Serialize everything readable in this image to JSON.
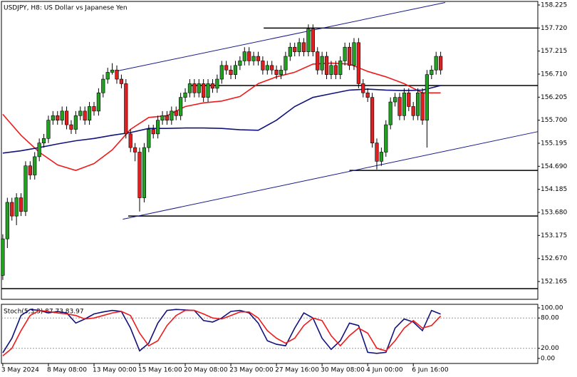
{
  "chart_data": [
    {
      "type": "candlestick",
      "title": "USDJPY, H8: US Dollar vs Japanese Yen",
      "bull_color": "#22a022",
      "bear_color": "#e02020",
      "xlim": [
        -0.3,
        117.3
      ],
      "xticks": [
        {
          "value": 0,
          "label": "3 May 2024"
        },
        {
          "value": 10,
          "label": "8 May 08:00"
        },
        {
          "value": 20,
          "label": "13 May 00:00"
        },
        {
          "value": 30,
          "label": "15 May 16:00"
        },
        {
          "value": 40,
          "label": "20 May 08:00"
        },
        {
          "value": 50,
          "label": "23 May 00:00"
        },
        {
          "value": 60,
          "label": "27 May 16:00"
        },
        {
          "value": 70,
          "label": "30 May 08:00"
        },
        {
          "value": 80,
          "label": "4 Jun 00:00"
        },
        {
          "value": 90,
          "label": "6 Jun 16:00"
        }
      ],
      "ylim": [
        151.775,
        158.303
      ],
      "yticks": [
        158.225,
        {
          "value": 157.72,
          "label": "157.720"
        },
        157.215,
        {
          "value": 156.71,
          "label": "156.710"
        },
        156.205,
        {
          "value": 155.7,
          "label": "155.700"
        },
        155.195,
        {
          "value": 154.69,
          "label": "154.690"
        },
        154.185,
        {
          "value": 153.68,
          "label": "153.680"
        },
        153.175,
        {
          "value": 152.67,
          "label": "152.670"
        },
        152.165
      ],
      "open": [
        152.3,
        153.1,
        153.9,
        153.6,
        154.0,
        153.7,
        154.7,
        154.5,
        154.9,
        155.2,
        155.3,
        155.7,
        155.8,
        155.7,
        155.9,
        155.6,
        155.5,
        155.8,
        155.9,
        155.7,
        156.0,
        155.9,
        156.3,
        156.6,
        156.75,
        156.8,
        156.6,
        156.5,
        155.4,
        155.1,
        155.0,
        154.0,
        155.1,
        155.5,
        155.4,
        155.7,
        155.8,
        155.7,
        155.9,
        155.8,
        156.2,
        156.3,
        156.5,
        156.3,
        156.5,
        156.2,
        156.5,
        156.4,
        156.6,
        156.9,
        156.8,
        156.7,
        156.9,
        157.0,
        157.2,
        157.0,
        157.1,
        157.0,
        156.8,
        156.9,
        156.8,
        156.7,
        156.8,
        157.1,
        157.3,
        157.2,
        157.4,
        157.2,
        157.7,
        157.2,
        156.8,
        157.1,
        156.7,
        156.9,
        156.7,
        157.0,
        157.3,
        156.9,
        157.4,
        156.5,
        156.3,
        156.2,
        155.2,
        154.8,
        155.0,
        155.6,
        156.1,
        156.2,
        155.8,
        156.3,
        156.0,
        155.8,
        156.3,
        155.7,
        156.7,
        156.8,
        157.1
      ],
      "high": [
        153.2,
        154.0,
        154.0,
        154.1,
        154.1,
        154.8,
        154.8,
        155.0,
        155.3,
        155.4,
        155.8,
        155.9,
        155.9,
        156.0,
        156.0,
        155.7,
        155.9,
        156.0,
        156.0,
        156.1,
        156.1,
        156.4,
        156.7,
        156.85,
        156.95,
        156.9,
        156.7,
        156.6,
        155.5,
        155.2,
        155.1,
        155.2,
        155.6,
        155.6,
        155.8,
        155.9,
        155.9,
        156.0,
        156.0,
        156.3,
        156.4,
        156.6,
        156.6,
        156.6,
        156.6,
        156.6,
        156.6,
        156.7,
        157.0,
        157.0,
        156.9,
        157.0,
        157.1,
        157.3,
        157.3,
        157.2,
        157.2,
        157.1,
        157.0,
        157.0,
        156.9,
        156.9,
        157.2,
        157.4,
        157.4,
        157.5,
        157.5,
        157.8,
        157.8,
        157.3,
        157.2,
        157.2,
        157.0,
        157.0,
        157.1,
        157.4,
        157.4,
        157.5,
        157.5,
        156.6,
        156.4,
        156.3,
        155.3,
        155.1,
        155.7,
        156.2,
        156.3,
        156.3,
        156.4,
        156.4,
        156.1,
        156.4,
        156.4,
        156.8,
        156.9,
        157.2,
        157.2
      ],
      "low": [
        152.2,
        152.9,
        153.5,
        153.4,
        153.6,
        153.6,
        154.4,
        154.4,
        154.8,
        155.1,
        155.2,
        155.6,
        155.6,
        155.6,
        155.5,
        155.4,
        155.4,
        155.7,
        155.6,
        155.6,
        155.8,
        155.8,
        156.2,
        156.5,
        156.7,
        156.5,
        156.4,
        155.3,
        155.0,
        154.8,
        153.7,
        153.9,
        155.0,
        155.3,
        155.3,
        155.6,
        155.6,
        155.6,
        155.7,
        155.7,
        156.1,
        156.2,
        156.2,
        156.2,
        156.1,
        156.1,
        156.3,
        156.3,
        156.5,
        156.7,
        156.6,
        156.6,
        156.8,
        156.9,
        156.9,
        156.9,
        156.9,
        156.7,
        156.7,
        156.7,
        156.6,
        156.6,
        156.7,
        157.0,
        157.1,
        157.1,
        157.1,
        157.1,
        157.1,
        156.7,
        156.7,
        156.6,
        156.6,
        156.6,
        156.6,
        156.9,
        156.8,
        156.8,
        156.4,
        156.2,
        156.1,
        155.1,
        154.62,
        154.7,
        154.9,
        155.5,
        156.0,
        155.7,
        155.7,
        155.9,
        155.7,
        155.7,
        155.6,
        155.1,
        156.6,
        156.7,
        156.7
      ],
      "close": [
        153.1,
        153.9,
        153.6,
        154.0,
        153.7,
        154.7,
        154.5,
        154.9,
        155.2,
        155.3,
        155.7,
        155.8,
        155.7,
        155.9,
        155.6,
        155.5,
        155.8,
        155.9,
        155.7,
        156.0,
        155.9,
        156.3,
        156.6,
        156.75,
        156.8,
        156.6,
        156.5,
        155.4,
        155.1,
        155.0,
        154.0,
        155.1,
        155.5,
        155.4,
        155.7,
        155.8,
        155.7,
        155.9,
        155.8,
        156.2,
        156.3,
        156.5,
        156.3,
        156.5,
        156.2,
        156.5,
        156.4,
        156.6,
        156.9,
        156.8,
        156.7,
        156.9,
        157.0,
        157.2,
        157.0,
        157.1,
        157.0,
        156.8,
        156.9,
        156.8,
        156.7,
        156.8,
        157.1,
        157.3,
        157.2,
        157.4,
        157.2,
        157.7,
        157.2,
        156.8,
        157.1,
        156.7,
        156.9,
        156.7,
        157.0,
        157.3,
        156.9,
        157.4,
        156.5,
        156.3,
        156.2,
        155.2,
        154.8,
        155.0,
        155.6,
        156.1,
        156.2,
        155.8,
        156.3,
        156.0,
        155.8,
        156.3,
        155.7,
        156.7,
        156.8,
        157.1,
        156.8
      ],
      "series": [
        {
          "color": "#ee1c1c",
          "x": [
            0,
            4,
            8,
            12,
            16,
            20,
            24,
            28,
            32,
            36,
            40,
            44,
            48,
            52,
            56,
            60,
            64,
            68,
            72,
            76,
            80,
            84,
            88,
            92,
            96
          ],
          "values": [
            155.83,
            155.37,
            155.0,
            154.72,
            154.6,
            154.75,
            155.05,
            155.5,
            155.76,
            155.8,
            156.0,
            156.08,
            156.12,
            156.22,
            156.5,
            156.65,
            156.75,
            156.93,
            156.95,
            156.93,
            156.77,
            156.65,
            156.5,
            156.3,
            156.3
          ]
        },
        {
          "color": "#12127a",
          "x": [
            0,
            4,
            8,
            12,
            16,
            20,
            24,
            28,
            32,
            36,
            40,
            44,
            48,
            52,
            56,
            60,
            64,
            68,
            72,
            76,
            80,
            84,
            88,
            92,
            96
          ],
          "values": [
            154.98,
            155.03,
            155.1,
            155.18,
            155.25,
            155.3,
            155.37,
            155.43,
            155.52,
            155.52,
            155.53,
            155.53,
            155.52,
            155.49,
            155.48,
            155.7,
            156.0,
            156.2,
            156.28,
            156.36,
            156.38,
            156.36,
            156.35,
            156.36,
            156.46
          ]
        }
      ],
      "levels": [
        {
          "start": 57.2,
          "price": 157.72
        },
        {
          "start": 40.8,
          "price": 156.46
        },
        {
          "start": 76,
          "price": 154.6
        },
        {
          "start": 27.5,
          "price": 153.6
        },
        {
          "start": -0.3,
          "price": 152.01
        }
      ],
      "channel_color": "#1a1a8c",
      "channel": [
        [
          [
            24.7,
            156.77
          ],
          [
            97,
            158.28
          ]
        ],
        [
          [
            26.3,
            153.53
          ],
          [
            117.3,
            155.45
          ]
        ]
      ]
    },
    {
      "type": "line",
      "title": "Stoch(5,3,3) 87.73 83.97",
      "ylim": [
        -10,
        107.1
      ],
      "yticks": [
        {
          "value": 100,
          "label": "100.00"
        },
        {
          "value": 80,
          "label": "80.00"
        },
        {
          "value": 20,
          "label": "20.00"
        },
        {
          "value": 0,
          "label": "0.00"
        }
      ],
      "levels": [
        80,
        20
      ],
      "series": [
        {
          "color": "#12127a",
          "x": [
            0,
            2,
            4,
            6,
            8,
            10,
            12,
            14,
            16,
            18,
            20,
            22,
            24,
            26,
            28,
            30,
            32,
            34,
            36,
            38,
            40,
            42,
            44,
            46,
            48,
            50,
            52,
            54,
            56,
            58,
            60,
            62,
            64,
            66,
            68,
            70,
            72,
            74,
            76,
            78,
            80,
            82,
            84,
            86,
            88,
            90,
            92,
            94,
            96
          ],
          "values": [
            11,
            40,
            85,
            97,
            95,
            90,
            93,
            90,
            70,
            78,
            88,
            92,
            95,
            93,
            60,
            15,
            30,
            70,
            95,
            97,
            96,
            95,
            75,
            72,
            80,
            93,
            95,
            90,
            70,
            35,
            28,
            25,
            60,
            90,
            80,
            40,
            18,
            35,
            70,
            65,
            12,
            10,
            12,
            60,
            78,
            72,
            55,
            95,
            87.73
          ]
        },
        {
          "color": "#ee1c1c",
          "x": [
            0,
            2,
            4,
            6,
            8,
            10,
            12,
            14,
            16,
            18,
            20,
            22,
            24,
            26,
            28,
            30,
            32,
            34,
            36,
            38,
            40,
            42,
            44,
            46,
            48,
            50,
            52,
            54,
            56,
            58,
            60,
            62,
            64,
            66,
            68,
            70,
            72,
            74,
            76,
            78,
            80,
            82,
            84,
            86,
            88,
            90,
            92,
            94,
            96
          ],
          "values": [
            5,
            20,
            55,
            85,
            95,
            93,
            90,
            88,
            85,
            78,
            80,
            85,
            90,
            93,
            85,
            50,
            25,
            35,
            65,
            85,
            95,
            95,
            88,
            80,
            78,
            85,
            92,
            92,
            80,
            55,
            40,
            30,
            40,
            65,
            80,
            75,
            45,
            25,
            45,
            60,
            50,
            20,
            15,
            35,
            60,
            75,
            60,
            65,
            83.97
          ]
        }
      ]
    }
  ]
}
